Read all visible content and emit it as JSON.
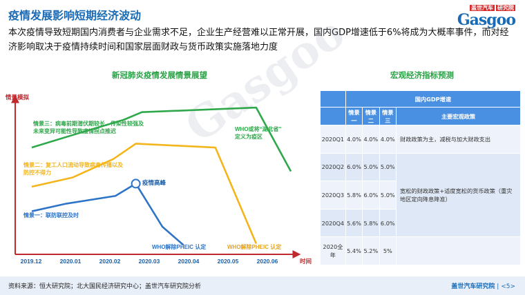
{
  "header": {
    "title": "疫情发展影响短期经济波动",
    "logo_small": "盖世汽车",
    "logo_badge": "研究院",
    "logo_word": "Gasgoo"
  },
  "summary": "本次疫情导致短期国内消费者与企业需求不足，企业生产经营难以正常开展，国内GDP增速低于6%将成为大概率事件，而对经济影响取决于疫情持续时间和国家层面财政与货币政策实施落地力度",
  "chart_title": "新冠肺炎疫情发展情景展望",
  "table_title": "宏观经济指标预测",
  "chart_data": {
    "type": "line",
    "title": "新冠肺炎疫情发展情景展望",
    "ylabel": "情景模拟",
    "xlabel": "时间",
    "categories": [
      "2019.12",
      "2020.01",
      "2020.02",
      "2020.03",
      "2020.04",
      "2020.05",
      "2020.06"
    ],
    "xlim": [
      0,
      6.4
    ],
    "ylim": [
      0,
      10
    ],
    "series": [
      {
        "name": "情景一：联防联控及时",
        "color": "#2f74c7",
        "x": [
          0,
          0.85,
          2.05,
          2.55,
          3.2,
          3.72
        ],
        "y": [
          2.8,
          3.3,
          3.8,
          4.6,
          1.8,
          0.6
        ]
      },
      {
        "name": "情景二：复工人口流动导致病毒传播以及防控不得力",
        "color": "#f3b51b",
        "x": [
          0,
          1.0,
          2.0,
          2.55,
          4.5,
          5.5
        ],
        "y": [
          4.4,
          5.0,
          6.2,
          7.2,
          6.95,
          0.7
        ]
      },
      {
        "name": "情景三：病毒前期潜伏期较长、传染性较强及未来变异可能性导致疫情拐点推迟",
        "color": "#2ea84a",
        "x": [
          0,
          1.05,
          2.25,
          2.7,
          5.5,
          6.35
        ],
        "y": [
          6.95,
          7.8,
          8.75,
          9.25,
          9.55,
          5.4
        ]
      }
    ],
    "annotations": [
      {
        "text": "疫情高峰",
        "x": 2.55,
        "y": 4.6
      },
      {
        "text": "WHO或将“湖北省”定义为疫区",
        "x": 5.5,
        "y": 7.7
      },
      {
        "text": "WHO解除PHEIC 认定",
        "x": 3.72,
        "y": 0.6
      },
      {
        "text": "WHO解除PHEIC 认定",
        "x": 5.5,
        "y": 0.7
      }
    ]
  },
  "table": {
    "group_header": "国内GDP增速",
    "columns": [
      "情景一",
      "情景二",
      "情景三",
      "主要宏观政策"
    ],
    "rows": [
      {
        "period": "2020Q1",
        "s1": "4.0%",
        "s2": "4.0%",
        "s3": "4.0%"
      },
      {
        "period": "2020Q2",
        "s1": "6.0%",
        "s2": "5.0%",
        "s3": "5.0%"
      },
      {
        "period": "2020Q3",
        "s1": "5.8%",
        "s2": "6.0%",
        "s3": "5.0%"
      },
      {
        "period": "2020Q4",
        "s1": "5.6%",
        "s2": "5.8%",
        "s3": "6.0%"
      },
      {
        "period": "2020全年",
        "s1": "5.4%",
        "s2": "5.2%",
        "s3": "5%"
      }
    ],
    "policy_1": "财政政策为主，减税与加大财政支出",
    "policy_2": "宽松的财政政策+适度宽松的货币政策（重灾地区定向降息降准）"
  },
  "footer": {
    "source": "资料来源：恒大研究院；北大国民经济研究中心；盖世汽车研究院分析",
    "org": "盖世汽车研究院",
    "page": "| <5>"
  },
  "colors": {
    "brand": "#1a6bb5",
    "accent_green": "#2aa146",
    "table_header": "#4a90e2",
    "axis_red": "#c0282d"
  }
}
